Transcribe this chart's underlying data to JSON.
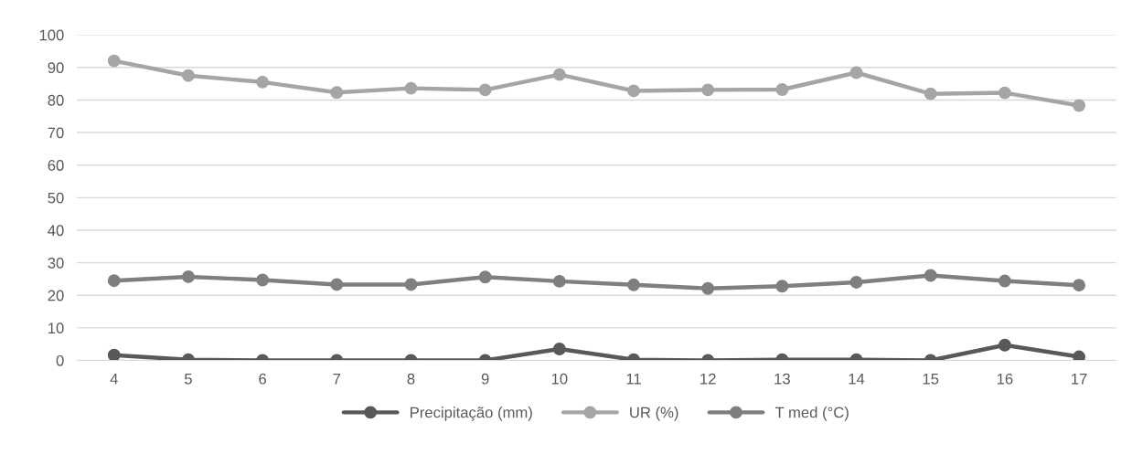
{
  "chart_data": {
    "type": "line",
    "categories": [
      "4",
      "5",
      "6",
      "7",
      "8",
      "9",
      "10",
      "11",
      "12",
      "13",
      "14",
      "15",
      "16",
      "17"
    ],
    "series": [
      {
        "name": "Precipitação (mm)",
        "color": "#595959",
        "values": [
          1.6,
          0.2,
          0,
          0,
          0,
          0,
          3.5,
          0.2,
          0,
          0.2,
          0.2,
          0,
          4.7,
          1.1
        ]
      },
      {
        "name": "UR (%)",
        "color": "#a5a5a5",
        "values": [
          92,
          87.5,
          85.5,
          82.3,
          83.6,
          83.1,
          87.8,
          82.8,
          83.1,
          83.2,
          88.4,
          81.9,
          82.2,
          78.3
        ]
      },
      {
        "name": "T med (°C)",
        "color": "#7f7f7f",
        "values": [
          24.5,
          25.7,
          24.7,
          23.3,
          23.3,
          25.6,
          24.3,
          23.2,
          22.1,
          22.8,
          24,
          26.1,
          24.4,
          23.1
        ]
      }
    ],
    "ylim": [
      0,
      100
    ],
    "yticks": [
      0,
      10,
      20,
      30,
      40,
      50,
      60,
      70,
      80,
      90,
      100
    ],
    "grid": "y",
    "legend": "bottom",
    "marker": "circle",
    "line_style": "solid"
  }
}
